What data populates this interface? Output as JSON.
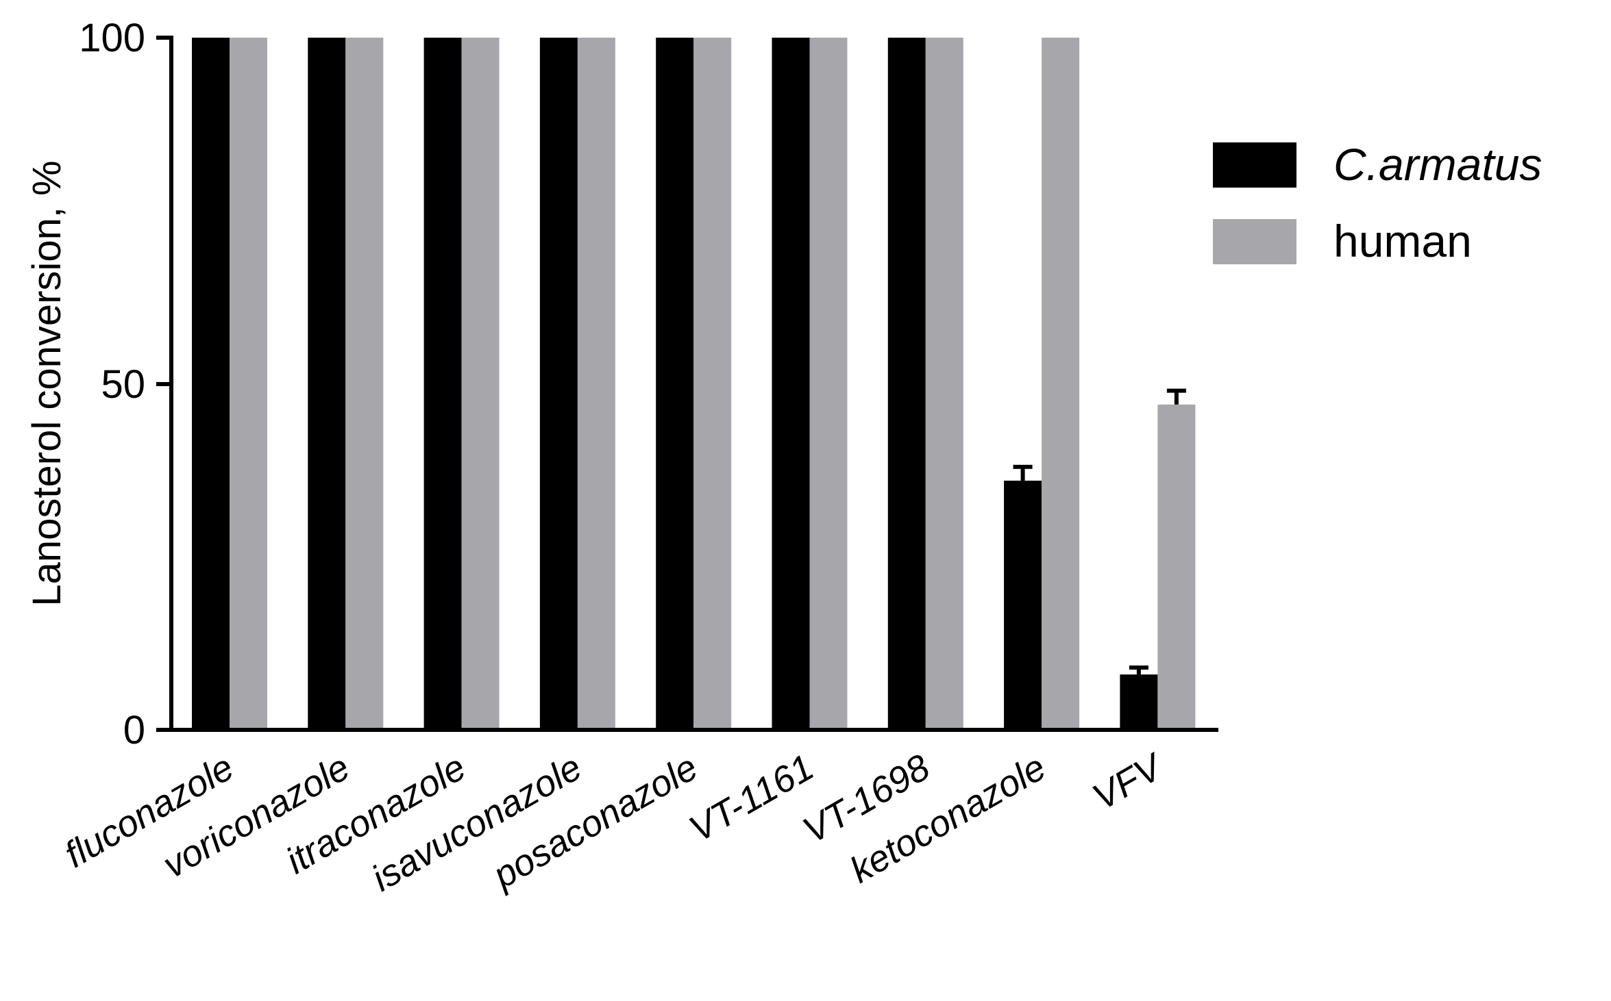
{
  "chart_data": {
    "type": "bar",
    "categories": [
      "fluconazole",
      "voriconazole",
      "itraconazole",
      "isavuconazole",
      "posaconazole",
      "VT-1161",
      "VT-1698",
      "ketoconazole",
      "VFV"
    ],
    "series": [
      {
        "name": "C.armatus",
        "color": "#000000",
        "values": [
          100,
          100,
          100,
          100,
          100,
          100,
          100,
          36,
          8
        ],
        "errors": [
          0,
          0,
          0,
          0,
          0,
          0,
          0,
          2,
          1
        ]
      },
      {
        "name": "human",
        "color": "#a7a6ab",
        "values": [
          100,
          100,
          100,
          100,
          100,
          100,
          100,
          100,
          47
        ],
        "errors": [
          0,
          0,
          0,
          0,
          0,
          0,
          0,
          0,
          2
        ]
      }
    ],
    "ylabel": "Lanosterol conversion, %",
    "ylim": [
      0,
      100
    ],
    "yticks": [
      "0",
      "50",
      "100"
    ],
    "legend_position": "right",
    "grid": false
  }
}
